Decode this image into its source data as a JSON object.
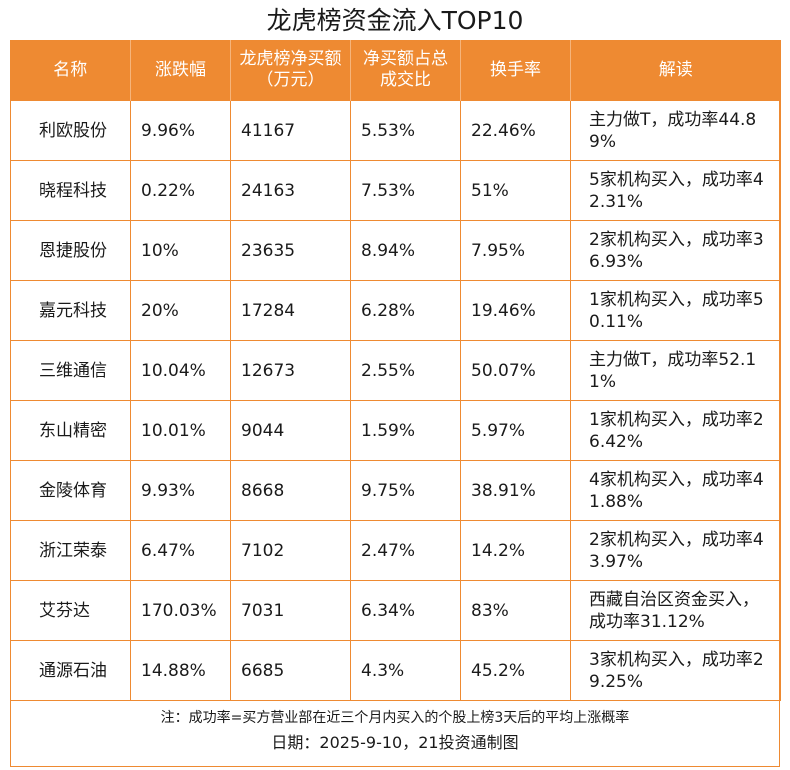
{
  "title": "龙虎榜资金流入TOP10",
  "colors": {
    "accent": "#ee8a32",
    "header_text": "#ffffff"
  },
  "table": {
    "columns": [
      "名称",
      "涨跌幅",
      "龙虎榜净买额（万元）",
      "净买额占总成交比",
      "换手率",
      "解读"
    ],
    "rows": [
      [
        "利欧股份",
        "9.96%",
        "41167",
        "5.53%",
        "22.46%",
        "主力做T，成功率44.89%"
      ],
      [
        "晓程科技",
        "0.22%",
        "24163",
        "7.53%",
        "51%",
        "5家机构买入，成功率42.31%"
      ],
      [
        "恩捷股份",
        "10%",
        "23635",
        "8.94%",
        "7.95%",
        "2家机构买入，成功率36.93%"
      ],
      [
        "嘉元科技",
        "20%",
        "17284",
        "6.28%",
        "19.46%",
        "1家机构买入，成功率50.11%"
      ],
      [
        "三维通信",
        "10.04%",
        "12673",
        "2.55%",
        "50.07%",
        "主力做T，成功率52.11%"
      ],
      [
        "东山精密",
        "10.01%",
        "9044",
        "1.59%",
        "5.97%",
        "1家机构买入，成功率26.42%"
      ],
      [
        "金陵体育",
        "9.93%",
        "8668",
        "9.75%",
        "38.91%",
        "4家机构买入，成功率41.88%"
      ],
      [
        "浙江荣泰",
        "6.47%",
        "7102",
        "2.47%",
        "14.2%",
        "2家机构买入，成功率43.97%"
      ],
      [
        "艾芬达",
        "170.03%",
        "7031",
        "6.34%",
        "83%",
        "西藏自治区资金买入，成功率31.12%"
      ],
      [
        "通源石油",
        "14.88%",
        "6685",
        "4.3%",
        "45.2%",
        "3家机构买入，成功率29.25%"
      ]
    ]
  },
  "footer": {
    "note": "注：成功率=买方营业部在近三个月内买入的个股上榜3天后的平均上涨概率",
    "date": "日期：2025-9-10，21投资通制图"
  }
}
